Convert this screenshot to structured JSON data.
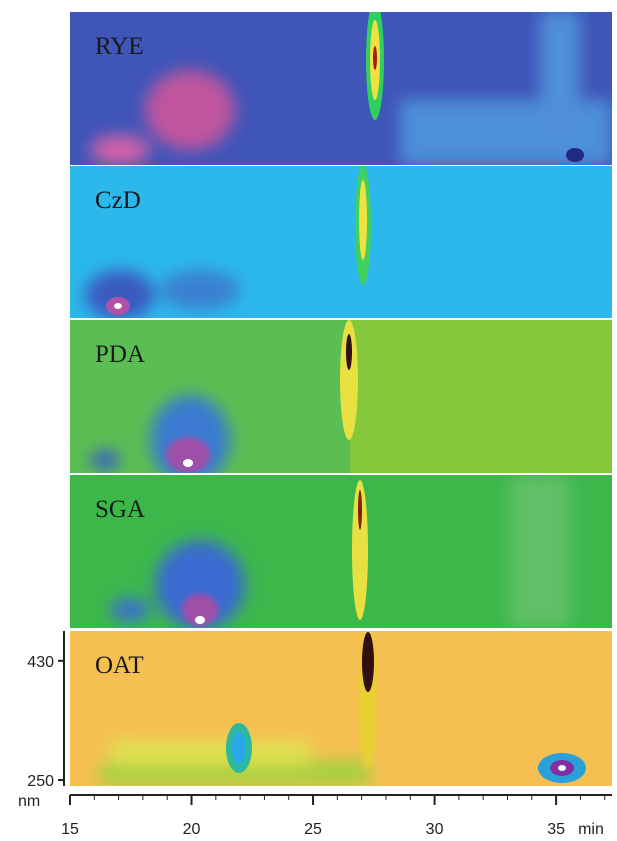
{
  "chart_data": {
    "type": "heatmap",
    "panels": [
      "RYE",
      "CzD",
      "PDA",
      "SGA",
      "OAT"
    ],
    "xlim": [
      15,
      37.3
    ],
    "xticks": [
      15,
      20,
      25,
      30,
      35
    ],
    "x_label": "min",
    "ylim": [
      241,
      475
    ],
    "yticks": [
      250,
      430
    ],
    "y_label": "nm"
  }
}
